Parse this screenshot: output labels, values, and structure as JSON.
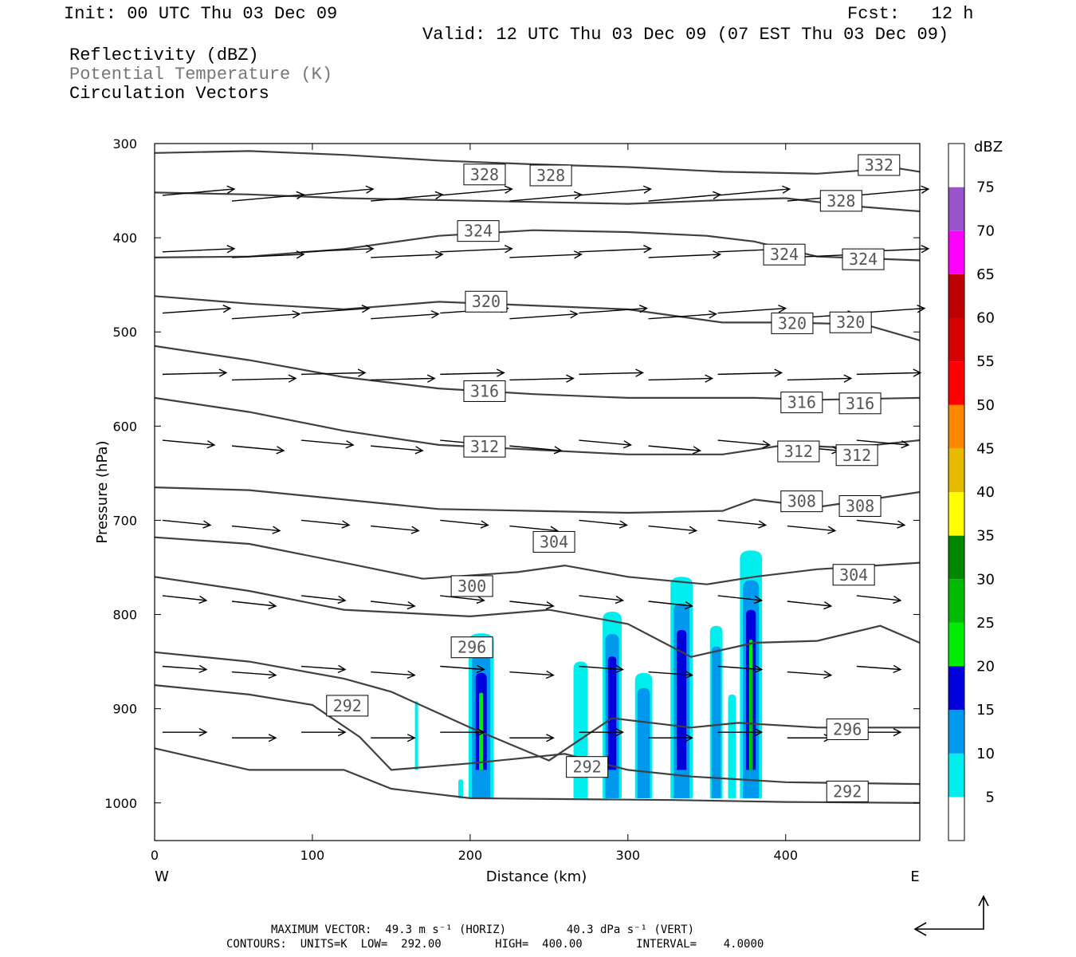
{
  "header": {
    "init": "Init: 00 UTC Thu 03 Dec 09",
    "fcst": "Fcst:   12 h",
    "valid": "Valid: 12 UTC Thu 03 Dec 09 (07 EST Thu 03 Dec 09)",
    "field1": "Reflectivity (dBZ)",
    "field2": "Potential Temperature (K)",
    "field3": "Circulation Vectors"
  },
  "footer": {
    "line1": "MAXIMUM VECTOR:  49.3 m s⁻¹ (HORIZ)         40.3 dPa s⁻¹ (VERT)",
    "line2": "CONTOURS:  UNITS=K  LOW=  292.00        HIGH=  400.00        INTERVAL=    4.0000"
  },
  "colors": {
    "contour": "#404040",
    "vector": "#000000",
    "frame": "#000000"
  },
  "chart_data": {
    "type": "heatmap",
    "title": "",
    "xlabel": "Distance (km)",
    "ylabel": "Pressure (hPa)",
    "xlim": [
      0,
      485
    ],
    "ylim": [
      1040,
      300
    ],
    "y_scale": "linear, inverted",
    "xticks": [
      0,
      100,
      200,
      300,
      400
    ],
    "yticks": [
      300,
      400,
      500,
      600,
      700,
      800,
      900,
      1000
    ],
    "x_left_label": "W",
    "x_right_label": "E",
    "colorbar": {
      "unit": "dBZ",
      "levels": [
        5,
        10,
        15,
        20,
        25,
        30,
        35,
        40,
        45,
        50,
        55,
        60,
        65,
        70,
        75
      ],
      "colors": [
        "#ffffff",
        "#00eeee",
        "#0099ee",
        "#0000dd",
        "#00ee00",
        "#00bb00",
        "#008800",
        "#ffff00",
        "#e6bb00",
        "#ff8800",
        "#ff0000",
        "#d50000",
        "#bb0000",
        "#ff00ff",
        "#9955cc",
        "#ffffff"
      ]
    },
    "reflectivity_cells": [
      {
        "x": 166,
        "p_top": 892,
        "p_bot": 965,
        "w": 2,
        "max_dbz": 5
      },
      {
        "x": 194,
        "p_top": 975,
        "p_bot": 995,
        "w": 3,
        "max_dbz": 5
      },
      {
        "x": 207,
        "p_top": 820,
        "p_bot": 995,
        "w": 16,
        "max_dbz": 20
      },
      {
        "x": 270,
        "p_top": 850,
        "p_bot": 995,
        "w": 9,
        "max_dbz": 5
      },
      {
        "x": 290,
        "p_top": 797,
        "p_bot": 995,
        "w": 12,
        "max_dbz": 15
      },
      {
        "x": 310,
        "p_top": 862,
        "p_bot": 995,
        "w": 11,
        "max_dbz": 10
      },
      {
        "x": 334,
        "p_top": 760,
        "p_bot": 995,
        "w": 14,
        "max_dbz": 15
      },
      {
        "x": 356,
        "p_top": 812,
        "p_bot": 995,
        "w": 8,
        "max_dbz": 10
      },
      {
        "x": 366,
        "p_top": 885,
        "p_bot": 995,
        "w": 5,
        "max_dbz": 5
      },
      {
        "x": 378,
        "p_top": 732,
        "p_bot": 995,
        "w": 14,
        "max_dbz": 25
      }
    ],
    "theta_contour_labels": [
      {
        "value": 328,
        "x": 196,
        "p": 332
      },
      {
        "value": 328,
        "x": 238,
        "p": 333
      },
      {
        "value": 332,
        "x": 446,
        "p": 322
      },
      {
        "value": 328,
        "x": 422,
        "p": 360
      },
      {
        "value": 324,
        "x": 192,
        "p": 392
      },
      {
        "value": 324,
        "x": 386,
        "p": 417
      },
      {
        "value": 324,
        "x": 436,
        "p": 422
      },
      {
        "value": 320,
        "x": 197,
        "p": 467
      },
      {
        "value": 320,
        "x": 391,
        "p": 490
      },
      {
        "value": 320,
        "x": 428,
        "p": 489
      },
      {
        "value": 316,
        "x": 196,
        "p": 562
      },
      {
        "value": 316,
        "x": 397,
        "p": 574
      },
      {
        "value": 316,
        "x": 434,
        "p": 575
      },
      {
        "value": 312,
        "x": 196,
        "p": 621
      },
      {
        "value": 312,
        "x": 395,
        "p": 626
      },
      {
        "value": 312,
        "x": 432,
        "p": 630
      },
      {
        "value": 308,
        "x": 397,
        "p": 679
      },
      {
        "value": 308,
        "x": 434,
        "p": 684
      },
      {
        "value": 304,
        "x": 240,
        "p": 722
      },
      {
        "value": 304,
        "x": 430,
        "p": 757
      },
      {
        "value": 300,
        "x": 188,
        "p": 769
      },
      {
        "value": 296,
        "x": 188,
        "p": 834
      },
      {
        "value": 296,
        "x": 426,
        "p": 921
      },
      {
        "value": 292,
        "x": 109,
        "p": 896
      },
      {
        "value": 292,
        "x": 261,
        "p": 961
      },
      {
        "value": 292,
        "x": 426,
        "p": 987
      }
    ]
  }
}
